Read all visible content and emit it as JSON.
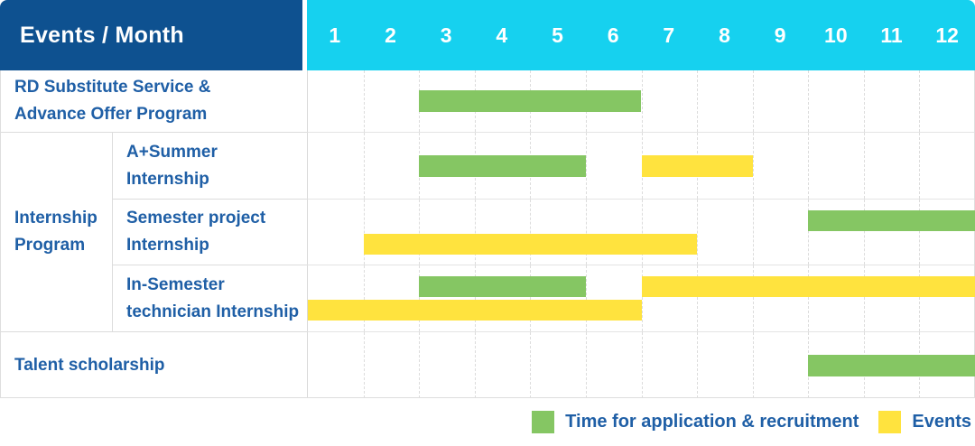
{
  "header": {
    "title": "Events / Month"
  },
  "months": [
    "1",
    "2",
    "3",
    "4",
    "5",
    "6",
    "7",
    "8",
    "9",
    "10",
    "11",
    "12"
  ],
  "labels": {
    "row1": "RD Substitute Service &\nAdvance Offer Program",
    "group": "Internship\nProgram",
    "row2": "A+Summer\nInternship",
    "row3": "Semester project\nInternship",
    "row4": "In-Semester\ntechnician Internship",
    "row5": "Talent scholarship"
  },
  "colors": {
    "header_bg": "#0E5190",
    "months_bg": "#16D1EF",
    "green": "#85C663",
    "yellow": "#FFE33E",
    "text": "#1F5FA6",
    "grid": "#DCDCDC"
  },
  "legend": {
    "items": [
      {
        "key": "green",
        "label": "Time for application & recruitment"
      },
      {
        "key": "yellow",
        "label": "Events"
      }
    ]
  },
  "chart_data": {
    "type": "bar",
    "subtype": "gantt",
    "title": "Events / Month",
    "x_axis": {
      "label": "Month",
      "ticks": [
        1,
        2,
        3,
        4,
        5,
        6,
        7,
        8,
        9,
        10,
        11,
        12
      ],
      "range": [
        1,
        12
      ]
    },
    "series_legend": [
      {
        "key": "green",
        "name": "Time for application & recruitment",
        "color": "#85C663"
      },
      {
        "key": "yellow",
        "name": "Events",
        "color": "#FFE33E"
      }
    ],
    "rows": [
      {
        "category": "RD Substitute Service & Advance Offer Program",
        "group": null,
        "bars": [
          {
            "series_key": "green",
            "series": "Time for application & recruitment",
            "start_month": 3,
            "end_month": 6,
            "line": 0
          }
        ]
      },
      {
        "category": "A+Summer Internship",
        "group": "Internship Program",
        "bars": [
          {
            "series_key": "green",
            "series": "Time for application & recruitment",
            "start_month": 3,
            "end_month": 5,
            "line": 0
          },
          {
            "series_key": "yellow",
            "series": "Events",
            "start_month": 7,
            "end_month": 8,
            "line": 0
          }
        ]
      },
      {
        "category": "Semester project Internship",
        "group": "Internship Program",
        "bars": [
          {
            "series_key": "green",
            "series": "Time for application & recruitment",
            "start_month": 10,
            "end_month": 12,
            "line": 0
          },
          {
            "series_key": "yellow",
            "series": "Events",
            "start_month": 2,
            "end_month": 7,
            "line": 1
          }
        ]
      },
      {
        "category": "In-Semester technician Internship",
        "group": "Internship Program",
        "bars": [
          {
            "series_key": "green",
            "series": "Time for application & recruitment",
            "start_month": 3,
            "end_month": 5,
            "line": 0
          },
          {
            "series_key": "yellow",
            "series": "Events",
            "start_month": 7,
            "end_month": 12,
            "line": 0
          },
          {
            "series_key": "yellow",
            "series": "Events",
            "start_month": 1,
            "end_month": 6,
            "line": 1
          }
        ]
      },
      {
        "category": "Talent scholarship",
        "group": null,
        "bars": [
          {
            "series_key": "green",
            "series": "Time for application & recruitment",
            "start_month": 10,
            "end_month": 12,
            "line": 0
          }
        ]
      }
    ]
  }
}
